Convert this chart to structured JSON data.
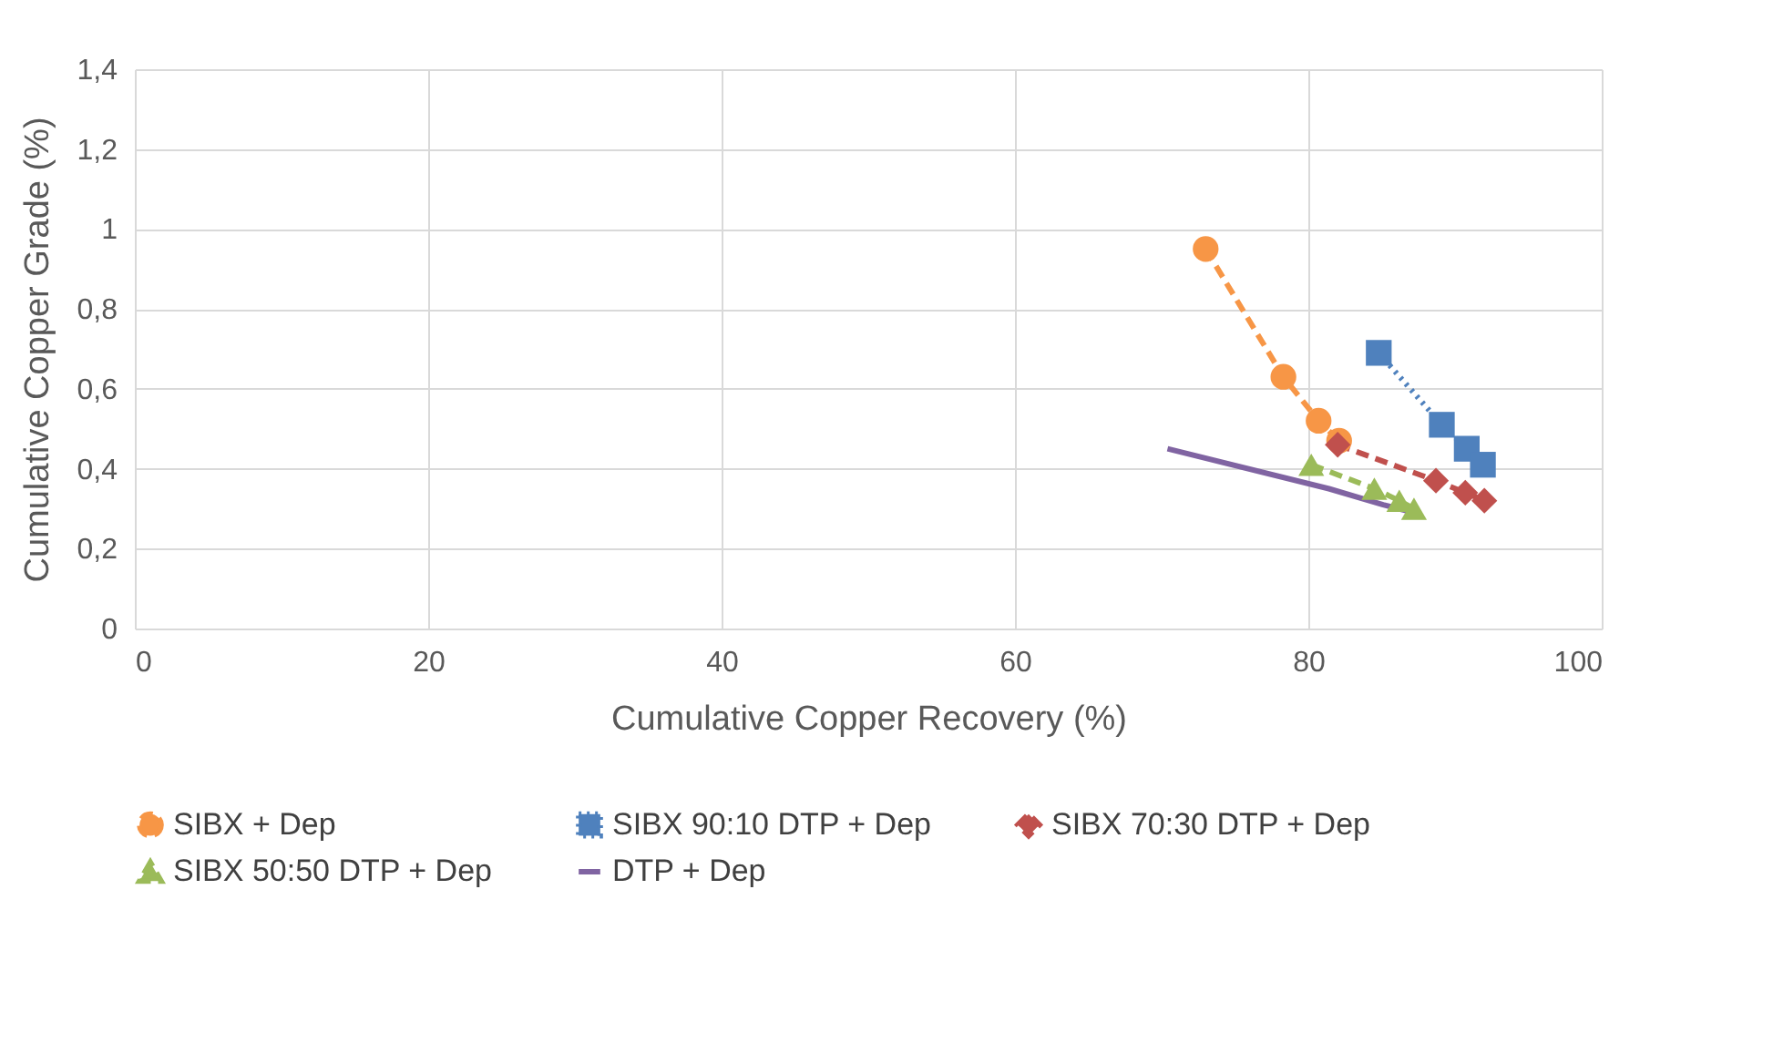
{
  "chart_data": {
    "type": "line",
    "xlabel": "Cumulative Copper Recovery (%)",
    "ylabel": "Cumulative Copper Grade (%)",
    "xlim": [
      0,
      100
    ],
    "xticks": [
      0,
      20,
      40,
      60,
      80,
      100
    ],
    "ylim": [
      0,
      1.4
    ],
    "yticks": [
      0,
      {
        "value": 0.2,
        "label": "0,2"
      },
      {
        "value": 0.4,
        "label": "0,4"
      },
      {
        "value": 0.6,
        "label": "0,6"
      },
      {
        "value": 0.8,
        "label": "0,8"
      },
      1,
      {
        "value": 1.2,
        "label": "1,2"
      },
      {
        "value": 1.4,
        "label": "1,4"
      }
    ],
    "grid": true,
    "legend": "bottom",
    "series": [
      {
        "name": "SIBX + Dep",
        "color": "#f79646",
        "marker": "circle",
        "line_style": "dashed",
        "x": [
          73.0,
          78.3,
          80.7,
          82.1
        ],
        "values": [
          0.95,
          0.63,
          0.52,
          0.47
        ]
      },
      {
        "name": "SIBX 90:10 DTP + Dep",
        "color": "#4f81bd",
        "marker": "square",
        "line_style": "dotted",
        "x": [
          84.8,
          89.1,
          90.8,
          91.9
        ],
        "values": [
          0.69,
          0.51,
          0.45,
          0.41
        ]
      },
      {
        "name": "SIBX 70:30 DTP + Dep",
        "color": "#c0504d",
        "marker": "diamond",
        "line_style": "dashed",
        "x": [
          82.0,
          88.7,
          90.7,
          92.0
        ],
        "values": [
          0.46,
          0.37,
          0.34,
          0.32
        ]
      },
      {
        "name": "SIBX 50:50 DTP + Dep",
        "color": "#9bbb59",
        "marker": "triangle",
        "line_style": "dashed",
        "x": [
          80.2,
          84.5,
          86.2,
          87.2
        ],
        "values": [
          0.41,
          0.35,
          0.32,
          0.3
        ]
      },
      {
        "name": "DTP + Dep",
        "color": "#8064a2",
        "marker": "none",
        "line_style": "solid",
        "x": [
          70.4,
          81.4,
          85.1,
          87.2
        ],
        "values": [
          0.45,
          0.35,
          0.31,
          0.29
        ]
      }
    ]
  }
}
